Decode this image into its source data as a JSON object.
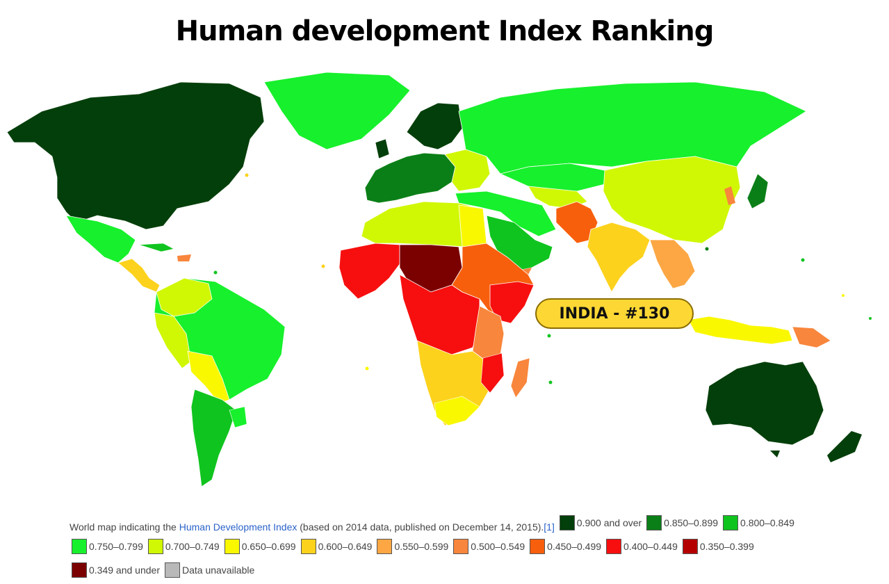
{
  "title": "Human development Index Ranking",
  "callout": {
    "label": "INDIA - #130"
  },
  "caption": {
    "prefix": "World map indicating the ",
    "link": "Human Development Index",
    "suffix": " (based on 2014 data, published on December 14, 2015).",
    "ref": "[1]"
  },
  "legend": [
    {
      "label": "0.900 and over",
      "color": "#033f0a"
    },
    {
      "label": "0.850–0.899",
      "color": "#0b7f17"
    },
    {
      "label": "0.800–0.849",
      "color": "#10c41f"
    },
    {
      "label": "0.750–0.799",
      "color": "#17f02c"
    },
    {
      "label": "0.700–0.749",
      "color": "#d0f804"
    },
    {
      "label": "0.650–0.699",
      "color": "#f9f800"
    },
    {
      "label": "0.600–0.649",
      "color": "#fcd21c"
    },
    {
      "label": "0.550–0.599",
      "color": "#fca743"
    },
    {
      "label": "0.500–0.549",
      "color": "#f8863c"
    },
    {
      "label": "0.450–0.499",
      "color": "#f85f0d"
    },
    {
      "label": "0.400–0.449",
      "color": "#f70f0f"
    },
    {
      "label": "0.350–0.399",
      "color": "#b50000"
    },
    {
      "label": "0.349 and under",
      "color": "#7b0000"
    },
    {
      "label": "Data unavailable",
      "color": "#b9b9b9"
    }
  ]
}
